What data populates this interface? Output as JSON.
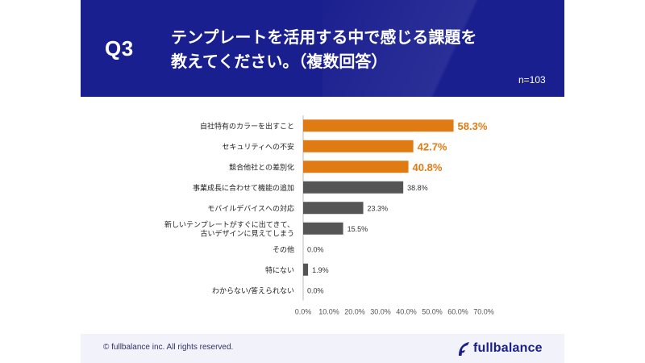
{
  "header": {
    "question_number": "Q3",
    "title_line1": "テンプレートを活用する中で感じる課題を",
    "title_line2": "教えてください。（複数回答）",
    "sample_size": "n=103"
  },
  "chart_data": {
    "type": "bar",
    "orientation": "horizontal",
    "categories": [
      [
        "自社特有のカラーを出すこと"
      ],
      [
        "セキュリティへの不安"
      ],
      [
        "競合他社との差別化"
      ],
      [
        "事業成長に合わせて機能の追加"
      ],
      [
        "モバイルデバイスへの対応"
      ],
      [
        "新しいテンプレートがすぐに出てきて、",
        "古いデザインに見えてしまう"
      ],
      [
        "その他"
      ],
      [
        "特にない"
      ],
      [
        "わからない/答えられない"
      ]
    ],
    "values": [
      58.3,
      42.7,
      40.8,
      38.8,
      23.3,
      15.5,
      0.0,
      1.9,
      0.0
    ],
    "value_labels": [
      "58.3%",
      "42.7%",
      "40.8%",
      "38.8%",
      "23.3%",
      "15.5%",
      "0.0%",
      "1.9%",
      "0.0%"
    ],
    "highlight_top": 3,
    "xlim": [
      0,
      70
    ],
    "xticks": [
      "0.0%",
      "10.0%",
      "20.0%",
      "30.0%",
      "40.0%",
      "50.0%",
      "60.0%",
      "70.0%"
    ],
    "colors": {
      "highlight": "#e07b14",
      "normal": "#555555"
    }
  },
  "footer": {
    "copyright": "© fullbalance inc. All rights reserved.",
    "logo_text": "fullbalance",
    "logo_color": "#1a1f8f"
  }
}
